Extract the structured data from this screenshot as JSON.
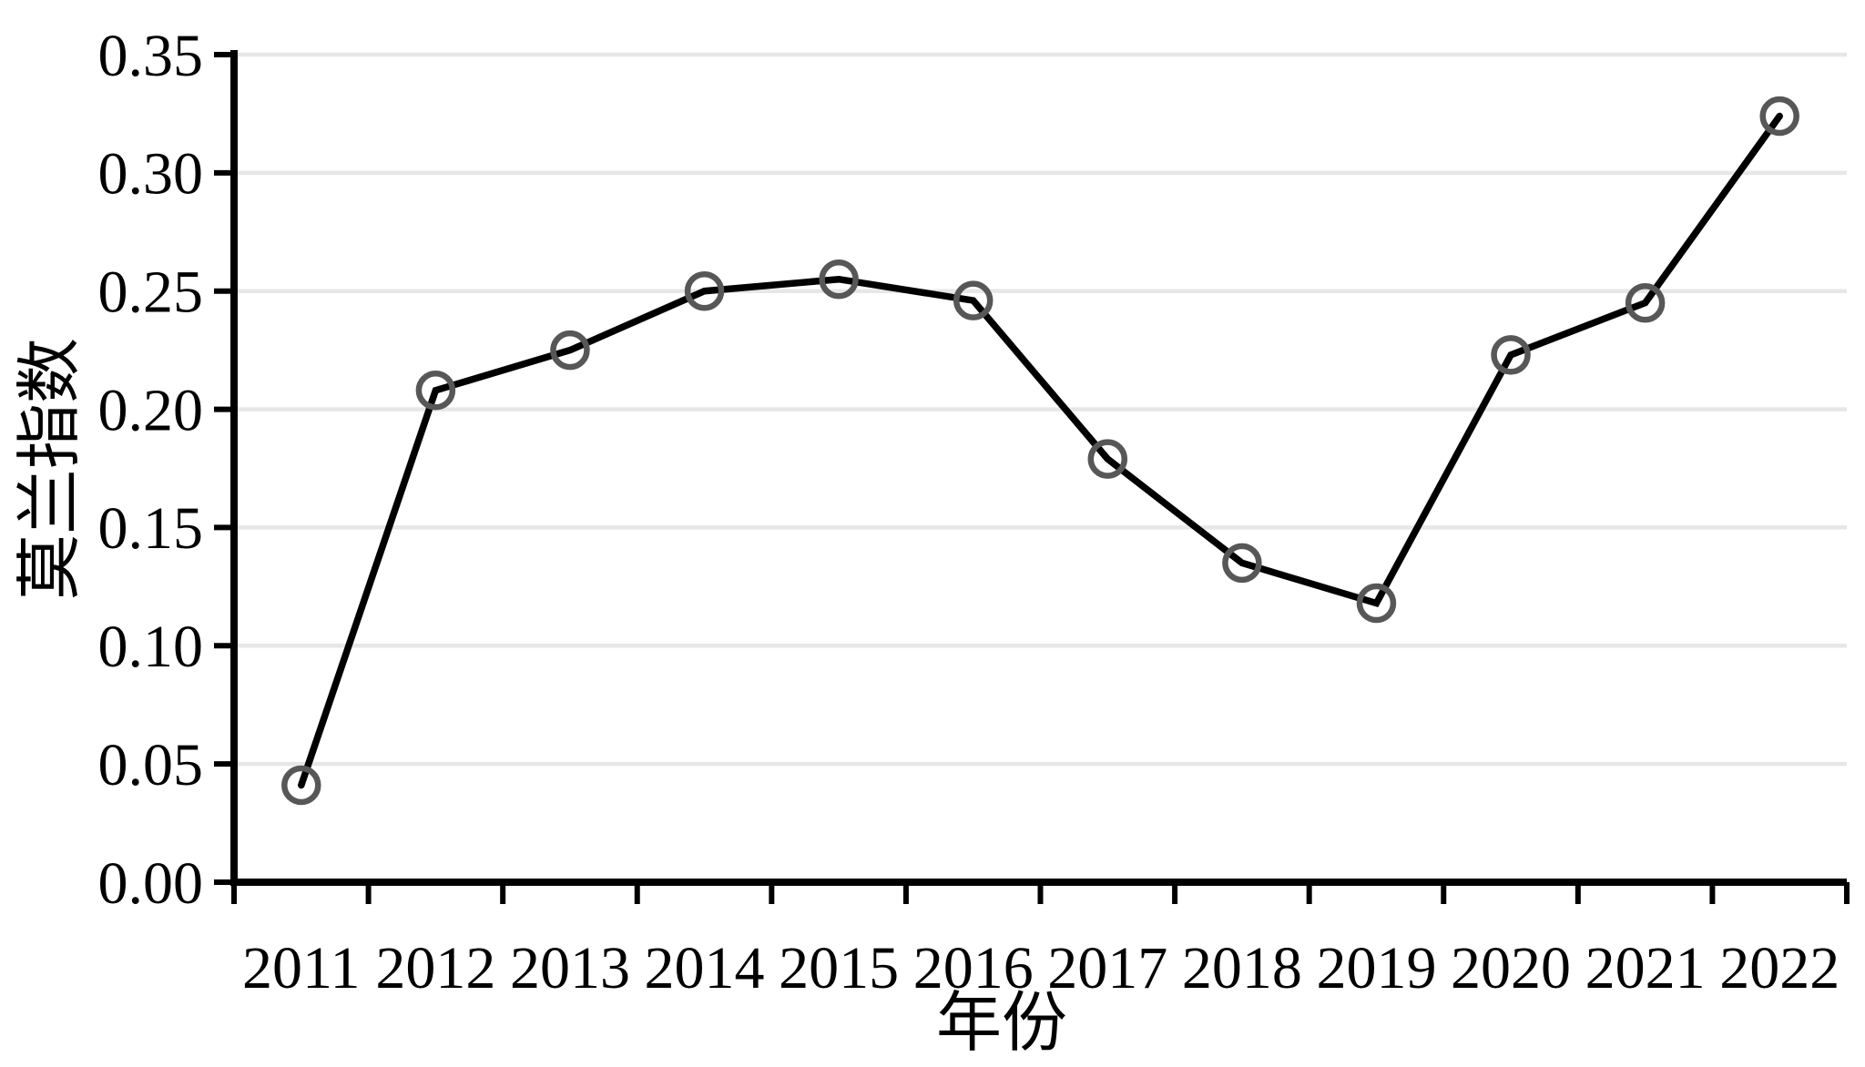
{
  "chart_data": {
    "type": "line",
    "title": "",
    "xlabel": "年份",
    "ylabel": "莫兰指数",
    "categories": [
      "2011",
      "2012",
      "2013",
      "2014",
      "2015",
      "2016",
      "2017",
      "2018",
      "2019",
      "2020",
      "2021",
      "2022"
    ],
    "series": [
      {
        "name": "莫兰指数",
        "values": [
          0.041,
          0.208,
          0.225,
          0.25,
          0.255,
          0.246,
          0.179,
          0.135,
          0.118,
          0.223,
          0.245,
          0.324
        ]
      }
    ],
    "ylim": [
      0.0,
      0.35
    ],
    "yticks": [
      0.0,
      0.05,
      0.1,
      0.15,
      0.2,
      0.25,
      0.3,
      0.35
    ],
    "ytick_labels": [
      "0.00",
      "0.05",
      "0.10",
      "0.15",
      "0.20",
      "0.25",
      "0.30",
      "0.35"
    ],
    "grid": "horizontal",
    "legend": "none",
    "marker": "open-circle",
    "colors": {
      "line": "#000000",
      "marker_ring": "#575757",
      "grid": "#e7e7e7",
      "axis": "#000000",
      "background": "#ffffff",
      "text": "#000000"
    }
  }
}
